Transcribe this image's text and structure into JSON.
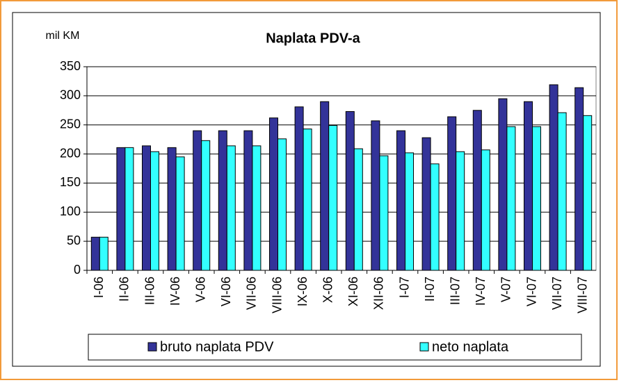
{
  "chart_data": {
    "type": "bar",
    "title": "Naplata PDV-a",
    "y_label": "mil KM",
    "categories": [
      "I-06",
      "II-06",
      "III-06",
      "IV-06",
      "V-06",
      "VI-06",
      "VII-06",
      "VIII-06",
      "IX-06",
      "X-06",
      "XI-06",
      "XII-06",
      "I-07",
      "II-07",
      "III-07",
      "IV-07",
      "V-07",
      "VI-07",
      "VII-07",
      "VIII-07"
    ],
    "series": [
      {
        "name": "bruto naplata PDV",
        "color": "#333399",
        "values": [
          57,
          211,
          214,
          211,
          240,
          240,
          240,
          262,
          281,
          290,
          273,
          257,
          240,
          228,
          264,
          275,
          295,
          290,
          319,
          314
        ]
      },
      {
        "name": "neto naplata",
        "color": "#33ffff",
        "values": [
          57,
          211,
          204,
          195,
          223,
          214,
          214,
          226,
          243,
          249,
          209,
          197,
          202,
          183,
          204,
          207,
          247,
          247,
          271,
          266
        ]
      }
    ],
    "ylim": [
      0,
      350
    ],
    "yticks": [
      0,
      50,
      100,
      150,
      200,
      250,
      300,
      350
    ],
    "grid": true,
    "legend": "bottom"
  }
}
